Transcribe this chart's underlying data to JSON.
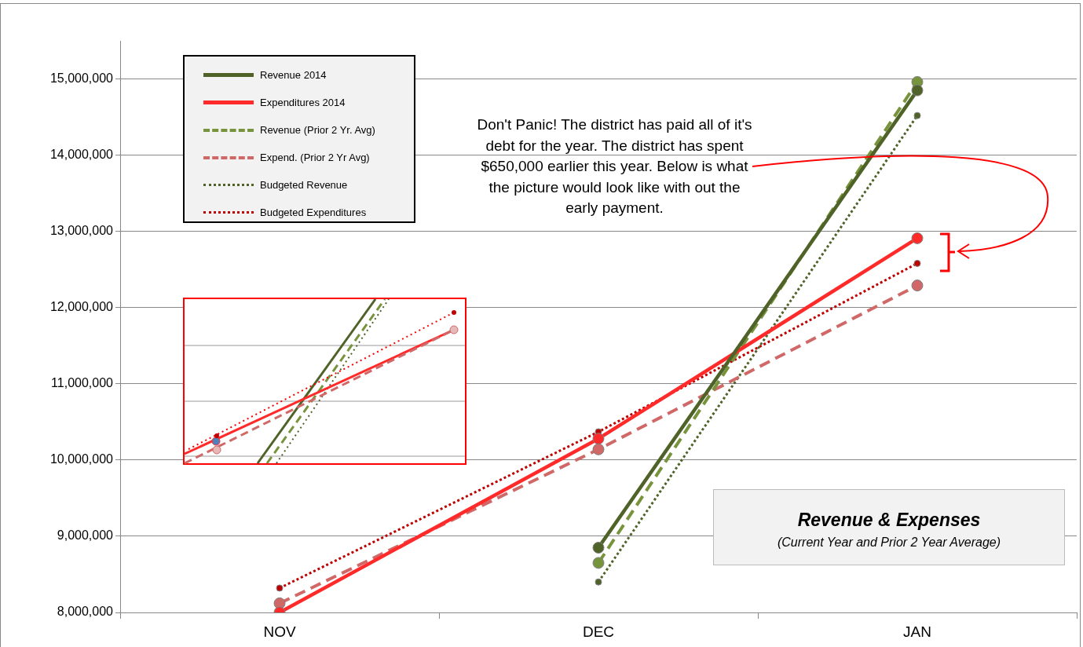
{
  "chart_data": {
    "type": "line",
    "title": "Revenue & Expenses",
    "subtitle": "(Current Year and Prior 2 Year Average)",
    "categories": [
      "NOV",
      "DEC",
      "JAN"
    ],
    "series": [
      {
        "name": "Revenue 2014",
        "color": "#4f6228",
        "line_style": "solid",
        "values": [
          null,
          8850000,
          14850000
        ]
      },
      {
        "name": "Expenditures 2014",
        "color": "#ff2a2a",
        "line_style": "solid",
        "values": [
          8000000,
          10280000,
          12910000
        ]
      },
      {
        "name": "Revenue (Prior 2 Yr. Avg)",
        "color": "#77933c",
        "line_style": "dashed",
        "values": [
          null,
          8650000,
          14960000
        ]
      },
      {
        "name": "Expend. (Prior 2 Yr Avg)",
        "color": "#d06868",
        "line_style": "dashed",
        "values": [
          8120000,
          10140000,
          12290000
        ]
      },
      {
        "name": "Budgeted Revenue",
        "color": "#4f6228",
        "line_style": "dotted",
        "values": [
          null,
          8400000,
          14520000
        ]
      },
      {
        "name": "Budgeted Expenditures",
        "color": "#c00000",
        "line_style": "dotted",
        "values": [
          8320000,
          10370000,
          12580000
        ]
      }
    ],
    "ylim": [
      8000000,
      15500000
    ],
    "yticks": [
      {
        "value": 8000000,
        "label": "8,000,000"
      },
      {
        "value": 9000000,
        "label": "9,000,000"
      },
      {
        "value": 10000000,
        "label": "10,000,000"
      },
      {
        "value": 11000000,
        "label": "11,000,000"
      },
      {
        "value": 12000000,
        "label": "12,000,000"
      },
      {
        "value": 13000000,
        "label": "13,000,000"
      },
      {
        "value": 14000000,
        "label": "14,000,000"
      },
      {
        "value": 15000000,
        "label": "15,000,000"
      }
    ],
    "grid": "y",
    "legend": "top left",
    "marker": "circle",
    "annotations": [
      "Don't Panic! The district has paid all of it's debt for the year. The district has spent $650,000 earlier this year. Below is what the picture would look like with out the early payment."
    ]
  }
}
